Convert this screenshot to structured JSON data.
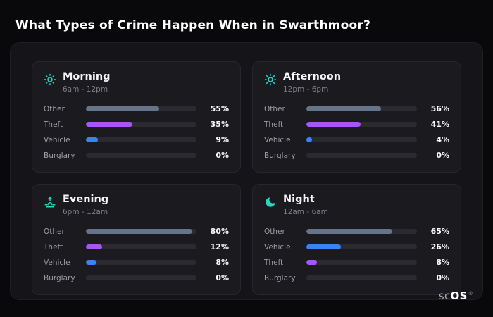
{
  "header": {
    "title": "What Types of Crime Happen When in Swarthmoor?"
  },
  "colors": {
    "accent_icon": "#2dd4bf",
    "panel_bg": "#151519",
    "card_bg": "#1a1a1f",
    "track": "#2a2a30",
    "categories": {
      "Other": "#64748b",
      "Theft": "#a855f7",
      "Vehicle": "#3b82f6",
      "Burglary": "#64748b"
    }
  },
  "chart_data": [
    {
      "type": "bar",
      "title": "Morning",
      "subtitle": "6am - 12pm",
      "icon": "sun-icon",
      "categories": [
        "Other",
        "Theft",
        "Vehicle",
        "Burglary"
      ],
      "values": [
        55,
        35,
        9,
        0
      ],
      "value_labels": [
        "55%",
        "35%",
        "9%",
        "0%"
      ],
      "xlim": [
        0,
        100
      ],
      "legend": "none",
      "grid": "off"
    },
    {
      "type": "bar",
      "title": "Afternoon",
      "subtitle": "12pm - 6pm",
      "icon": "sun-icon",
      "categories": [
        "Other",
        "Theft",
        "Vehicle",
        "Burglary"
      ],
      "values": [
        56,
        41,
        4,
        0
      ],
      "value_labels": [
        "56%",
        "41%",
        "4%",
        "0%"
      ],
      "xlim": [
        0,
        100
      ],
      "legend": "none",
      "grid": "off"
    },
    {
      "type": "bar",
      "title": "Evening",
      "subtitle": "6pm - 12am",
      "icon": "sunrise-icon",
      "categories": [
        "Other",
        "Theft",
        "Vehicle",
        "Burglary"
      ],
      "values": [
        80,
        12,
        8,
        0
      ],
      "value_labels": [
        "80%",
        "12%",
        "8%",
        "0%"
      ],
      "xlim": [
        0,
        100
      ],
      "legend": "none",
      "grid": "off"
    },
    {
      "type": "bar",
      "title": "Night",
      "subtitle": "12am - 6am",
      "icon": "moon-icon",
      "categories": [
        "Other",
        "Vehicle",
        "Theft",
        "Burglary"
      ],
      "values": [
        65,
        26,
        8,
        0
      ],
      "value_labels": [
        "65%",
        "26%",
        "8%",
        "0%"
      ],
      "xlim": [
        0,
        100
      ],
      "legend": "none",
      "grid": "off"
    }
  ],
  "brand": {
    "prefix": "sc",
    "suffix": "OS",
    "registered": "®"
  }
}
